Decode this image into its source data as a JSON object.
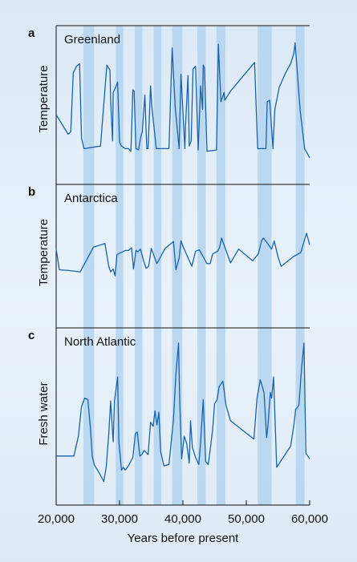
{
  "chart_data": {
    "type": "line",
    "xlabel": "Years before present",
    "xlim": [
      20000,
      60000
    ],
    "xticks": [
      20000,
      30000,
      40000,
      50000,
      60000
    ],
    "xtick_labels": [
      "20,000",
      "30,000",
      "40,000",
      "50,000",
      "60,000"
    ],
    "colors": {
      "line": "#1a63a8",
      "band": "#b3d3ef",
      "axis": "#111111"
    },
    "shaded_bands": [
      [
        24300,
        26000
      ],
      [
        29400,
        30600
      ],
      [
        32400,
        33600
      ],
      [
        35400,
        36600
      ],
      [
        38300,
        39900
      ],
      [
        42300,
        43600
      ],
      [
        45300,
        46700
      ],
      [
        51800,
        54000
      ],
      [
        57800,
        59200
      ]
    ],
    "panels": [
      {
        "letter": "a",
        "title": "Greenland",
        "ylabel": "Temperature",
        "ylim": [
          0,
          100
        ],
        "x": [
          20000,
          21900,
          22300,
          22700,
          23200,
          23700,
          24000,
          24400,
          27000,
          27300,
          28000,
          28500,
          28600,
          28900,
          29000,
          29300,
          29700,
          30000,
          30300,
          30900,
          31400,
          31800,
          32100,
          32300,
          32600,
          33000,
          33300,
          33600,
          34000,
          34300,
          34500,
          34900,
          35100,
          35800,
          37800,
          38300,
          38800,
          39400,
          39500,
          39700,
          39900,
          40300,
          40400,
          40800,
          41000,
          41300,
          41600,
          42000,
          42400,
          42800,
          43100,
          43200,
          43400,
          43800,
          45300,
          45600,
          46000,
          46500,
          46600,
          47500,
          51300,
          51800,
          52000,
          52700,
          53100,
          53300,
          53700,
          54200,
          54500,
          55200,
          56200,
          57000,
          57500,
          57700,
          58500,
          59200,
          60000
        ],
        "y": [
          38,
          23,
          25,
          70,
          75,
          77,
          20,
          12,
          14,
          33,
          76,
          72,
          49,
          18,
          55,
          58,
          63,
          17,
          14,
          12,
          12,
          10,
          57,
          56,
          12,
          11,
          20,
          25,
          53,
          12,
          12,
          60,
          44,
          12,
          12,
          89,
          43,
          12,
          30,
          69,
          50,
          12,
          29,
          68,
          14,
          18,
          73,
          75,
          11,
          60,
          42,
          76,
          74,
          10,
          11,
          92,
          48,
          55,
          49,
          56,
          78,
          12,
          12,
          12,
          12,
          48,
          49,
          12,
          42,
          59,
          70,
          77,
          85,
          93,
          41,
          12,
          5
        ]
      },
      {
        "letter": "b",
        "title": "Antarctica",
        "ylabel": "Temperature",
        "ylim": [
          0,
          100
        ],
        "x": [
          20000,
          20500,
          22000,
          23800,
          25900,
          27700,
          28300,
          28600,
          29000,
          29300,
          29600,
          30900,
          31400,
          31900,
          32200,
          32600,
          32900,
          33300,
          33800,
          34200,
          34600,
          35000,
          35900,
          37200,
          38500,
          38900,
          39400,
          39700,
          40100,
          41400,
          42000,
          42600,
          43800,
          44300,
          44700,
          45500,
          45800,
          46100,
          47500,
          48800,
          51000,
          51900,
          52400,
          52700,
          53300,
          54000,
          54400,
          55000,
          55500,
          57400,
          58600,
          59500,
          60000
        ],
        "y": [
          55,
          25,
          24,
          22,
          58,
          63,
          30,
          22,
          26,
          16,
          47,
          53,
          53,
          57,
          26,
          53,
          51,
          55,
          38,
          27,
          30,
          56,
          34,
          56,
          66,
          25,
          42,
          67,
          57,
          30,
          52,
          54,
          34,
          34,
          48,
          52,
          58,
          71,
          35,
          55,
          38,
          48,
          67,
          71,
          64,
          55,
          67,
          44,
          30,
          44,
          50,
          78,
          61
        ]
      },
      {
        "letter": "c",
        "title": "North Atlantic",
        "ylabel": "Fresh water",
        "ylim": [
          0,
          100
        ],
        "x": [
          20000,
          22800,
          23500,
          24000,
          24500,
          25000,
          25400,
          25700,
          26000,
          26800,
          27500,
          27900,
          28300,
          28600,
          29000,
          29200,
          29700,
          29900,
          30300,
          30600,
          30900,
          31400,
          32100,
          32500,
          32800,
          33200,
          33500,
          33900,
          34500,
          34900,
          35300,
          35600,
          35900,
          36200,
          36500,
          37000,
          37800,
          38500,
          38900,
          39300,
          39500,
          39800,
          40200,
          40600,
          41000,
          41200,
          41500,
          42000,
          42500,
          42800,
          43200,
          43600,
          44000,
          44400,
          44700,
          45000,
          45400,
          45700,
          46300,
          46800,
          47500,
          51200,
          51700,
          52200,
          52800,
          53200,
          53400,
          53800,
          54000,
          54300,
          54800,
          57000,
          57500,
          57800,
          58300,
          58700,
          59100,
          59400,
          60000
        ],
        "y": [
          20,
          20,
          34,
          55,
          61,
          60,
          40,
          20,
          14,
          8,
          2,
          12,
          36,
          59,
          30,
          59,
          76,
          30,
          10,
          12,
          10,
          13,
          19,
          36,
          37,
          20,
          21,
          24,
          21,
          44,
          41,
          52,
          42,
          51,
          23,
          13,
          14,
          46,
          78,
          100,
          60,
          18,
          34,
          29,
          15,
          45,
          26,
          19,
          14,
          30,
          60,
          16,
          14,
          28,
          39,
          57,
          60,
          69,
          73,
          56,
          45,
          32,
          61,
          74,
          65,
          33,
          41,
          65,
          61,
          76,
          12,
          27,
          42,
          53,
          56,
          81,
          100,
          22,
          18
        ]
      }
    ]
  }
}
